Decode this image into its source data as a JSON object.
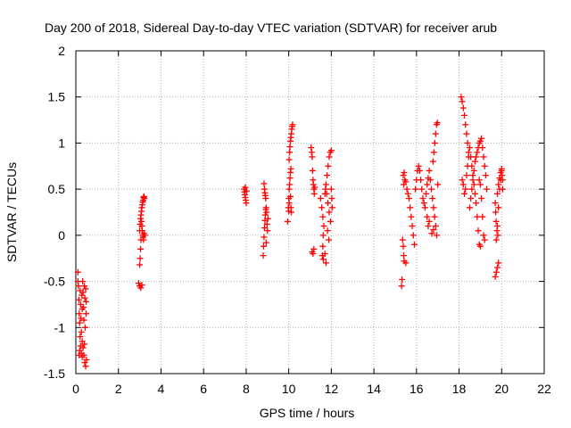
{
  "chart_data": {
    "type": "scatter",
    "title": "Day 200 of 2018, Sidereal Day-to-day VTEC variation (SDTVAR) for receiver arub",
    "xlabel": "GPS time / hours",
    "ylabel": "SDTVAR / TECUs",
    "xlim": [
      0,
      22
    ],
    "ylim": [
      -1.5,
      2
    ],
    "x_ticks": [
      0,
      2,
      4,
      6,
      8,
      10,
      12,
      14,
      16,
      18,
      20,
      22
    ],
    "y_ticks": [
      -1.5,
      -1,
      -0.5,
      0,
      0.5,
      1,
      1.5,
      2
    ],
    "x_tick_labels": [
      "0",
      "2",
      "4",
      "6",
      "8",
      "10",
      "12",
      "14",
      "16",
      "18",
      "20",
      "22"
    ],
    "y_tick_labels": [
      "-1.5",
      "-1",
      "-0.5",
      "0",
      "0.5",
      "1",
      "1.5",
      "2"
    ],
    "grid": true,
    "marker": "+",
    "marker_color": "#ff0000",
    "series": [
      {
        "name": "SDTVAR",
        "color": "#ff0000",
        "points": [
          [
            0.1,
            -0.4
          ],
          [
            0.12,
            -0.55
          ],
          [
            0.14,
            -0.7
          ],
          [
            0.16,
            -0.85
          ],
          [
            0.18,
            -0.95
          ],
          [
            0.2,
            -0.6
          ],
          [
            0.22,
            -0.75
          ],
          [
            0.24,
            -0.9
          ],
          [
            0.26,
            -1.05
          ],
          [
            0.28,
            -0.65
          ],
          [
            0.3,
            -0.8
          ],
          [
            0.32,
            -0.5
          ],
          [
            0.34,
            -0.62
          ],
          [
            0.36,
            -0.78
          ],
          [
            0.38,
            -0.92
          ],
          [
            0.4,
            -0.55
          ],
          [
            0.42,
            -0.68
          ],
          [
            0.44,
            -1.0
          ],
          [
            0.46,
            -0.58
          ],
          [
            0.48,
            -0.72
          ],
          [
            0.15,
            -1.3
          ],
          [
            0.18,
            -1.25
          ],
          [
            0.22,
            -1.2
          ],
          [
            0.26,
            -1.28
          ],
          [
            0.3,
            -1.32
          ],
          [
            0.34,
            -1.22
          ],
          [
            0.38,
            -1.3
          ],
          [
            0.42,
            -1.38
          ],
          [
            0.46,
            -1.42
          ],
          [
            0.5,
            -1.35
          ],
          [
            0.2,
            -1.1
          ],
          [
            0.3,
            -1.15
          ],
          [
            0.4,
            -1.18
          ],
          [
            0.1,
            -0.5
          ],
          [
            0.48,
            -0.85
          ],
          [
            2.95,
            -0.52
          ],
          [
            3.0,
            -0.55
          ],
          [
            3.05,
            -0.57
          ],
          [
            3.1,
            -0.54
          ],
          [
            3.0,
            -0.32
          ],
          [
            3.02,
            -0.25
          ],
          [
            3.04,
            -0.15
          ],
          [
            3.06,
            -0.05
          ],
          [
            3.0,
            0.05
          ],
          [
            3.02,
            0.12
          ],
          [
            3.04,
            0.18
          ],
          [
            3.06,
            0.22
          ],
          [
            3.08,
            0.26
          ],
          [
            3.1,
            0.3
          ],
          [
            3.12,
            0.33
          ],
          [
            3.14,
            0.36
          ],
          [
            3.16,
            0.38
          ],
          [
            3.18,
            0.41
          ],
          [
            3.2,
            0.42
          ],
          [
            3.22,
            0.4
          ],
          [
            3.1,
            0.1
          ],
          [
            3.12,
            0.05
          ],
          [
            3.14,
            0.0
          ],
          [
            3.16,
            -0.02
          ],
          [
            3.18,
            -0.05
          ],
          [
            3.08,
            0.15
          ],
          [
            3.2,
            0.02
          ],
          [
            3.24,
            0.0
          ],
          [
            7.9,
            0.5
          ],
          [
            7.92,
            0.47
          ],
          [
            7.94,
            0.44
          ],
          [
            7.96,
            0.41
          ],
          [
            7.98,
            0.38
          ],
          [
            8.0,
            0.35
          ],
          [
            8.02,
            0.48
          ],
          [
            7.96,
            0.52
          ],
          [
            8.8,
            -0.22
          ],
          [
            8.82,
            -0.12
          ],
          [
            8.84,
            -0.02
          ],
          [
            8.86,
            0.08
          ],
          [
            8.88,
            0.16
          ],
          [
            8.9,
            0.22
          ],
          [
            8.92,
            0.28
          ],
          [
            8.94,
            0.3
          ],
          [
            8.96,
            0.25
          ],
          [
            8.98,
            0.12
          ],
          [
            9.0,
            0.05
          ],
          [
            8.84,
            0.56
          ],
          [
            8.86,
            0.5
          ],
          [
            8.88,
            0.46
          ],
          [
            8.9,
            0.43
          ],
          [
            8.92,
            0.4
          ],
          [
            9.02,
            0.18
          ],
          [
            8.94,
            -0.08
          ],
          [
            9.95,
            0.15
          ],
          [
            9.98,
            0.3
          ],
          [
            10.0,
            0.4
          ],
          [
            10.02,
            0.5
          ],
          [
            10.04,
            0.55
          ],
          [
            10.06,
            0.62
          ],
          [
            10.08,
            0.68
          ],
          [
            10.1,
            0.72
          ],
          [
            10.02,
            0.82
          ],
          [
            10.04,
            0.9
          ],
          [
            10.06,
            0.96
          ],
          [
            10.08,
            1.02
          ],
          [
            10.1,
            1.06
          ],
          [
            10.12,
            1.1
          ],
          [
            10.14,
            1.15
          ],
          [
            10.16,
            1.18
          ],
          [
            10.18,
            1.2
          ],
          [
            10.0,
            0.26
          ],
          [
            10.02,
            0.35
          ],
          [
            10.08,
            0.42
          ],
          [
            10.1,
            0.3
          ],
          [
            10.12,
            0.25
          ],
          [
            11.05,
            0.95
          ],
          [
            11.08,
            0.9
          ],
          [
            11.1,
            0.85
          ],
          [
            11.12,
            0.7
          ],
          [
            11.14,
            0.6
          ],
          [
            11.16,
            0.55
          ],
          [
            11.18,
            0.5
          ],
          [
            11.2,
            0.45
          ],
          [
            11.1,
            -0.18
          ],
          [
            11.14,
            -0.2
          ],
          [
            11.18,
            -0.15
          ],
          [
            11.22,
            0.52
          ],
          [
            11.5,
            0.4
          ],
          [
            11.55,
            0.3
          ],
          [
            11.6,
            0.2
          ],
          [
            11.65,
            0.1
          ],
          [
            11.62,
            0.0
          ],
          [
            11.6,
            -0.12
          ],
          [
            11.58,
            -0.22
          ],
          [
            11.62,
            -0.26
          ],
          [
            11.7,
            0.45
          ],
          [
            11.75,
            0.55
          ],
          [
            11.8,
            0.65
          ],
          [
            11.85,
            0.75
          ],
          [
            11.9,
            0.85
          ],
          [
            11.95,
            0.9
          ],
          [
            12.0,
            0.92
          ],
          [
            12.02,
            0.4
          ],
          [
            12.04,
            0.3
          ],
          [
            11.72,
            0.5
          ],
          [
            11.78,
            0.45
          ],
          [
            11.84,
            0.35
          ],
          [
            11.9,
            0.25
          ],
          [
            11.96,
            0.15
          ],
          [
            12.0,
            0.5
          ],
          [
            11.7,
            -0.2
          ],
          [
            11.75,
            -0.3
          ],
          [
            11.82,
            0.05
          ],
          [
            11.88,
            -0.05
          ],
          [
            15.3,
            -0.55
          ],
          [
            15.32,
            -0.48
          ],
          [
            15.35,
            -0.05
          ],
          [
            15.38,
            -0.12
          ],
          [
            15.4,
            -0.22
          ],
          [
            15.42,
            -0.28
          ],
          [
            15.4,
            0.55
          ],
          [
            15.45,
            0.6
          ],
          [
            15.5,
            0.58
          ],
          [
            15.55,
            0.5
          ],
          [
            15.6,
            0.45
          ],
          [
            15.65,
            0.4
          ],
          [
            15.7,
            0.3
          ],
          [
            15.75,
            0.2
          ],
          [
            15.8,
            0.1
          ],
          [
            15.85,
            0.0
          ],
          [
            15.9,
            -0.1
          ],
          [
            15.5,
            -0.3
          ],
          [
            15.38,
            0.65
          ],
          [
            15.42,
            0.68
          ],
          [
            15.95,
            0.5
          ],
          [
            16.0,
            0.6
          ],
          [
            16.05,
            0.7
          ],
          [
            16.1,
            0.75
          ],
          [
            16.15,
            0.7
          ],
          [
            16.2,
            0.6
          ],
          [
            16.25,
            0.5
          ],
          [
            16.3,
            0.4
          ],
          [
            16.35,
            0.35
          ],
          [
            16.4,
            0.3
          ],
          [
            16.45,
            0.45
          ],
          [
            16.5,
            0.55
          ],
          [
            16.55,
            0.62
          ],
          [
            16.6,
            0.7
          ],
          [
            16.65,
            0.6
          ],
          [
            16.7,
            0.5
          ],
          [
            16.75,
            0.4
          ],
          [
            16.8,
            0.3
          ],
          [
            16.85,
            0.2
          ],
          [
            16.9,
            0.1
          ],
          [
            16.95,
            0.0
          ],
          [
            16.72,
            0.02
          ],
          [
            16.8,
            0.06
          ],
          [
            16.78,
            0.8
          ],
          [
            16.82,
            0.9
          ],
          [
            16.86,
            1.0
          ],
          [
            16.9,
            1.1
          ],
          [
            16.94,
            1.2
          ],
          [
            16.98,
            1.22
          ],
          [
            17.0,
            0.55
          ],
          [
            16.5,
            0.2
          ],
          [
            16.55,
            0.1
          ],
          [
            16.6,
            0.15
          ],
          [
            18.1,
            1.5
          ],
          [
            18.15,
            1.45
          ],
          [
            18.2,
            1.38
          ],
          [
            18.25,
            1.3
          ],
          [
            18.3,
            1.2
          ],
          [
            18.35,
            1.1
          ],
          [
            18.4,
            1.0
          ],
          [
            18.45,
            0.9
          ],
          [
            18.15,
            0.6
          ],
          [
            18.2,
            0.55
          ],
          [
            18.25,
            0.45
          ],
          [
            18.3,
            0.5
          ],
          [
            18.35,
            0.65
          ],
          [
            18.4,
            0.75
          ],
          [
            18.45,
            0.85
          ],
          [
            18.5,
            0.95
          ],
          [
            18.55,
            0.85
          ],
          [
            18.6,
            0.75
          ],
          [
            18.65,
            0.65
          ],
          [
            18.7,
            0.55
          ],
          [
            18.75,
            0.45
          ],
          [
            18.8,
            0.35
          ],
          [
            18.85,
            0.2
          ],
          [
            18.9,
            0.05
          ],
          [
            18.95,
            -0.1
          ],
          [
            19.0,
            -0.12
          ],
          [
            18.55,
            0.4
          ],
          [
            18.6,
            0.5
          ],
          [
            18.65,
            0.6
          ],
          [
            18.7,
            0.7
          ],
          [
            18.75,
            0.8
          ],
          [
            18.8,
            0.85
          ],
          [
            18.85,
            0.9
          ],
          [
            18.9,
            0.95
          ],
          [
            18.95,
            1.0
          ],
          [
            19.0,
            1.02
          ],
          [
            19.05,
            1.05
          ],
          [
            19.1,
            0.95
          ],
          [
            19.15,
            0.85
          ],
          [
            19.2,
            0.75
          ],
          [
            19.25,
            0.65
          ],
          [
            18.95,
            0.6
          ],
          [
            19.0,
            0.55
          ],
          [
            19.05,
            0.4
          ],
          [
            19.1,
            0.2
          ],
          [
            19.15,
            0.0
          ],
          [
            19.2,
            -0.05
          ],
          [
            18.5,
            0.3
          ],
          [
            19.3,
            0.5
          ],
          [
            19.7,
            -0.45
          ],
          [
            19.75,
            -0.4
          ],
          [
            19.8,
            -0.35
          ],
          [
            19.85,
            -0.3
          ],
          [
            19.75,
            -0.05
          ],
          [
            19.8,
            0.1
          ],
          [
            19.85,
            0.3
          ],
          [
            19.9,
            0.5
          ],
          [
            19.95,
            0.6
          ],
          [
            20.0,
            0.7
          ],
          [
            19.8,
            0.45
          ],
          [
            19.85,
            0.55
          ],
          [
            19.9,
            0.62
          ],
          [
            19.95,
            0.68
          ],
          [
            20.0,
            0.72
          ],
          [
            20.02,
            0.65
          ],
          [
            20.04,
            0.6
          ],
          [
            19.7,
            0.35
          ],
          [
            19.72,
            0.25
          ],
          [
            19.74,
            0.15
          ],
          [
            19.78,
            0.05
          ],
          [
            19.82,
            0.0
          ],
          [
            20.05,
            0.5
          ]
        ]
      }
    ]
  }
}
